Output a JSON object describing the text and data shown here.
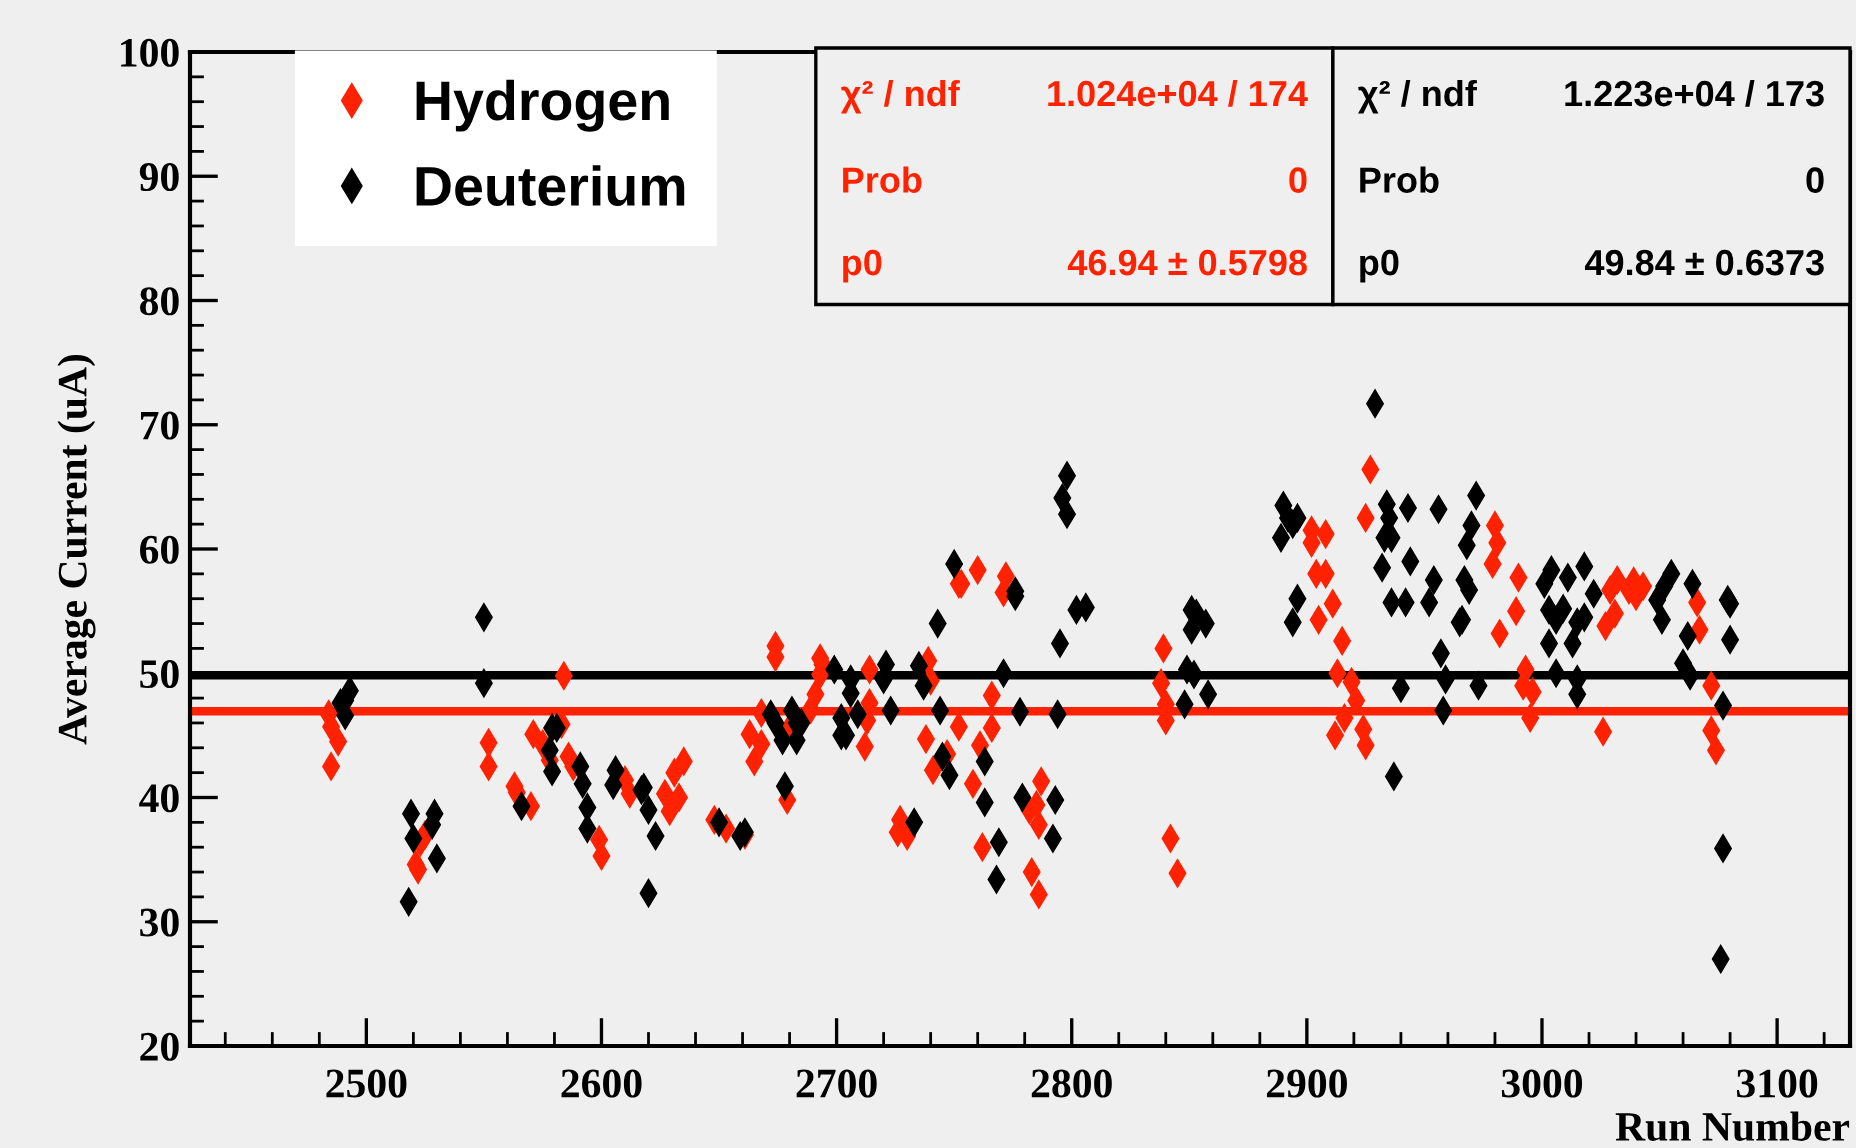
{
  "chart_data": {
    "type": "scatter",
    "xlabel": "Run Number",
    "ylabel": "Average Current (uA)",
    "xlim": [
      2425,
      3131
    ],
    "xticks": [
      2500,
      2600,
      2700,
      2800,
      2900,
      3000,
      3100
    ],
    "ylim": [
      20,
      100
    ],
    "yticks": [
      20,
      30,
      40,
      50,
      60,
      70,
      80,
      90,
      100
    ],
    "grid": false,
    "legend": "top left",
    "marker": "diamond",
    "series": [
      {
        "name": "Hydrogen",
        "color": "#ff2200",
        "x": [
          2484,
          2485,
          2488,
          2485,
          2521,
          2522,
          2523,
          2525,
          2552,
          2552,
          2563,
          2564,
          2570,
          2571,
          2575,
          2578,
          2583,
          2584,
          2586,
          2588,
          2599,
          2600,
          2610,
          2612,
          2627,
          2629,
          2631,
          2633,
          2635,
          2648,
          2653,
          2661,
          2663,
          2665,
          2668,
          2668,
          2674,
          2674,
          2679,
          2680,
          2689,
          2691,
          2693,
          2694,
          2693,
          2712,
          2713,
          2714,
          2714,
          2726,
          2727,
          2730,
          2738,
          2739,
          2740,
          2741,
          2747,
          2752,
          2753,
          2760,
          2752,
          2761,
          2758,
          2762,
          2766,
          2766,
          2771,
          2772,
          2782,
          2785,
          2787,
          2786,
          2783,
          2786,
          2838,
          2839,
          2840,
          2840,
          2842,
          2845,
          2902,
          2902,
          2908,
          2904,
          2908,
          2911,
          2905,
          2915,
          2913,
          2919,
          2921,
          2916,
          2912,
          2924,
          2925,
          2925,
          2927,
          2980,
          2981,
          2979,
          2990,
          2989,
          2982,
          2993,
          2992,
          2996,
          2995,
          3026,
          3027,
          3031,
          3029,
          3032,
          3037,
          3039,
          3040,
          3043,
          3066,
          3067,
          3072,
          3072,
          3074
        ],
        "values": [
          46.7,
          45.7,
          44.5,
          42.5,
          34.6,
          34.2,
          36.4,
          37,
          44.4,
          42.5,
          40.9,
          40.4,
          39.3,
          45.1,
          44.3,
          43,
          45.9,
          49.8,
          43.3,
          42.5,
          36.6,
          35.3,
          41.4,
          40.3,
          40.3,
          38.9,
          42,
          40,
          42.9,
          38.2,
          37.5,
          37,
          45.1,
          42.9,
          46.8,
          44.3,
          52.2,
          51.3,
          39.8,
          45.6,
          47.1,
          48.3,
          49.9,
          50.7,
          51.2,
          44.1,
          46.2,
          47.6,
          50.3,
          37.2,
          38.2,
          36.9,
          44.7,
          51,
          49.4,
          42.2,
          43.5,
          57.2,
          57.2,
          58.3,
          45.7,
          44.2,
          41.1,
          36,
          48.2,
          45.6,
          56.5,
          57.8,
          39,
          39.4,
          41.3,
          37.8,
          34,
          32.2,
          49.2,
          52,
          47.5,
          46.2,
          36.7,
          33.9,
          61.5,
          60.5,
          61.2,
          58,
          58,
          55.6,
          54.3,
          52.6,
          50,
          49.3,
          47.8,
          46.4,
          45,
          45.5,
          44.2,
          62.5,
          66.4,
          61.9,
          60.5,
          58.8,
          57.7,
          55,
          53.2,
          50.3,
          49,
          48.5,
          46.4,
          45.3,
          53.8,
          54.8,
          56.7,
          57.5,
          56.7,
          57.4,
          56.2,
          57,
          55.7,
          53.5,
          49,
          45.4,
          43.8
        ]
      },
      {
        "name": "Deuterium",
        "color": "#000000",
        "x": [
          2489,
          2491,
          2493,
          2491,
          2518,
          2519,
          2520,
          2528,
          2529,
          2530,
          2550,
          2550,
          2566,
          2578,
          2579,
          2581,
          2579,
          2591,
          2592,
          2594,
          2594,
          2605,
          2606,
          2617,
          2618,
          2620,
          2623,
          2620,
          2650,
          2659,
          2661,
          2672,
          2674,
          2677,
          2678,
          2681,
          2683,
          2685,
          2683,
          2699,
          2702,
          2702,
          2704,
          2706,
          2706,
          2709,
          2720,
          2721,
          2723,
          2733,
          2735,
          2737,
          2743,
          2744,
          2745,
          2748,
          2750,
          2763,
          2763,
          2768,
          2769,
          2771,
          2776,
          2776,
          2778,
          2779,
          2792,
          2793,
          2794,
          2795,
          2796,
          2798,
          2798,
          2802,
          2806,
          2848,
          2849,
          2851,
          2851,
          2852,
          2853,
          2857,
          2858,
          2889,
          2890,
          2892,
          2894,
          2896,
          2894,
          2896,
          2929,
          2932,
          2933,
          2934,
          2935,
          2936,
          2936,
          2937,
          2940,
          2942,
          2943,
          2944,
          2952,
          2954,
          2956,
          2957,
          2958,
          2959,
          2965,
          2966,
          2967,
          2968,
          2969,
          2970,
          2972,
          2973,
          3001,
          3003,
          3003,
          3004,
          3006,
          3006,
          3009,
          3011,
          3013,
          3015,
          3015,
          3015,
          3018,
          3018,
          3022,
          3049,
          3051,
          3052,
          3055,
          3060,
          3062,
          3063,
          3064,
          3076,
          3077,
          3077,
          3079,
          3080,
          3080
        ],
        "values": [
          47.6,
          47.8,
          48.6,
          46.6,
          31.6,
          38.7,
          36.7,
          37.8,
          38.7,
          35.1,
          54.5,
          49.2,
          39.3,
          43.8,
          45.6,
          45.6,
          42.1,
          42.5,
          41.1,
          39.2,
          37.5,
          41,
          42.2,
          40.6,
          40.8,
          39,
          36.9,
          32.3,
          38,
          36.9,
          37.2,
          46.7,
          46,
          44.6,
          40.9,
          47,
          46,
          46,
          44.6,
          50.3,
          46.4,
          45,
          45,
          49.5,
          48.4,
          46.7,
          49.5,
          50.7,
          47,
          38,
          50.6,
          49,
          54,
          47,
          43.3,
          41.8,
          58.8,
          42.9,
          39.6,
          33.4,
          36.4,
          50,
          56.2,
          56.6,
          46.9,
          40,
          36.7,
          39.8,
          46.7,
          52.4,
          64.1,
          65.9,
          62.8,
          55.1,
          55.3,
          47.5,
          50.3,
          55.1,
          53.5,
          49.9,
          54.8,
          54,
          48.3,
          60.9,
          63.5,
          62.5,
          62,
          62.5,
          54.1,
          56,
          71.7,
          58.5,
          60.9,
          63.6,
          62.5,
          60.9,
          55.7,
          41.7,
          48.8,
          55.7,
          63.3,
          59,
          55.7,
          57.5,
          63.2,
          51.6,
          47,
          49.5,
          54.1,
          54.3,
          57.5,
          60.3,
          56.7,
          61.9,
          64.3,
          49,
          57.2,
          55.1,
          52.4,
          58.3,
          54.3,
          50,
          55.2,
          57.7,
          52.4,
          54.1,
          49.5,
          48.3,
          58.6,
          54.5,
          56.4,
          55.9,
          54.3,
          57,
          58,
          50.8,
          53,
          49.8,
          57.2,
          27,
          35.9,
          47.4,
          55.9,
          55.6,
          52.7
        ]
      }
    ],
    "ref_lines": [
      {
        "axis": "y",
        "value": 49.84,
        "color": "#000000"
      },
      {
        "axis": "y",
        "value": 46.94,
        "color": "#ff2200"
      }
    ],
    "annotations": [
      "χ² / ndf",
      "1.024e+04 / 174",
      "Prob",
      "0",
      "p0",
      "46.94 ± 0.5798",
      "χ² / ndf",
      "1.223e+04 / 173",
      "Prob",
      "0",
      "p0",
      "49.84 ± 0.6373"
    ]
  }
}
